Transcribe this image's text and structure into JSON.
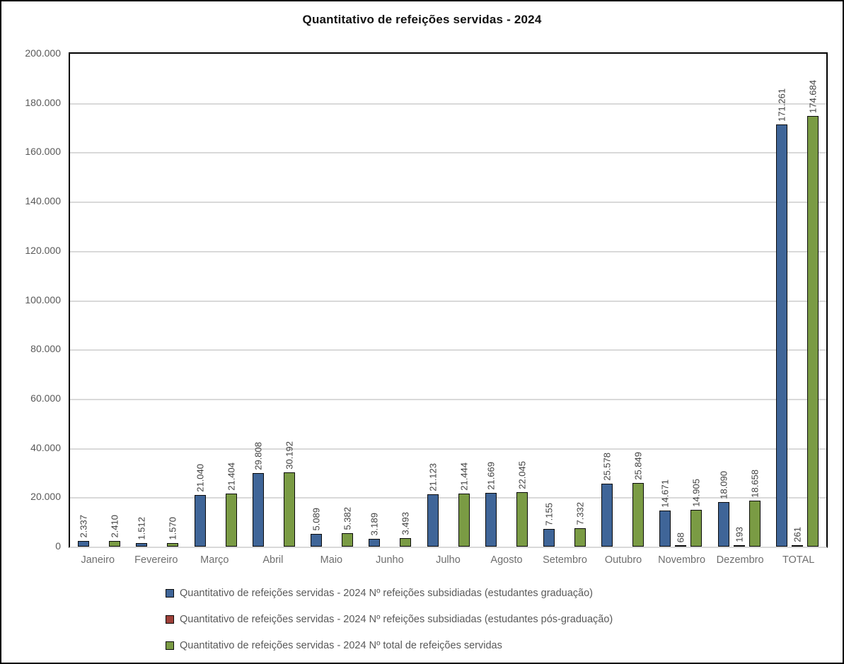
{
  "chart_data": {
    "type": "bar",
    "title": "Quantitativo de refeições servidas - 2024",
    "xlabel": "",
    "ylabel": "",
    "ylim": [
      0,
      200000
    ],
    "ytick_interval": 20000,
    "ytick_labels": [
      "200.000",
      "180.000",
      "160.000",
      "140.000",
      "120.000",
      "100.000",
      "80.000",
      "60.000",
      "40.000",
      "20.000",
      "0"
    ],
    "grid": true,
    "gridline_color": "#d9d9d9",
    "legend_position": "bottom-left",
    "categories": [
      "Janeiro",
      "Fevereiro",
      "Março",
      "Abril",
      "Maio",
      "Junho",
      "Julho",
      "Agosto",
      "Setembro",
      "Outubro",
      "Novembro",
      "Dezembro",
      "TOTAL"
    ],
    "series": [
      {
        "key": "refeicoes-subsidiadas-graduacao",
        "name": "Quantitativo de refeições servidas - 2024 Nº refeições subsidiadas (estudantes graduação)",
        "color": "#3f6598",
        "values": [
          2337,
          1512,
          21040,
          29808,
          5089,
          3189,
          21123,
          21669,
          7155,
          25578,
          14671,
          18090,
          171261
        ],
        "labels": [
          "2.337",
          "1.512",
          "21.040",
          "29.808",
          "5.089",
          "3.189",
          "21.123",
          "21.669",
          "7.155",
          "25.578",
          "14.671",
          "18.090",
          "171.261"
        ]
      },
      {
        "key": "refeicoes-subsidiadas-pos-graduacao",
        "name": "Quantitativo de refeições servidas - 2024 Nº refeições subsidiadas (estudantes pós-graduação)",
        "color": "#9e4039",
        "values": [
          0,
          0,
          0,
          0,
          0,
          0,
          0,
          0,
          0,
          0,
          68,
          193,
          261
        ],
        "labels": [
          "",
          "",
          "",
          "",
          "",
          "",
          "",
          "",
          "",
          "",
          "68",
          "193",
          "261"
        ]
      },
      {
        "key": "total-refeicoes-servidas",
        "name": "Quantitativo de refeições servidas - 2024 Nº total de refeições servidas",
        "color": "#7a9b44",
        "values": [
          2410,
          1570,
          21404,
          30192,
          5382,
          3493,
          21444,
          22045,
          7332,
          25849,
          14905,
          18658,
          174684
        ],
        "labels": [
          "2.410",
          "1.570",
          "21.404",
          "30.192",
          "5.382",
          "3.493",
          "21.444",
          "22.045",
          "7.332",
          "25.849",
          "14.905",
          "18.658",
          "174.684"
        ]
      }
    ]
  }
}
